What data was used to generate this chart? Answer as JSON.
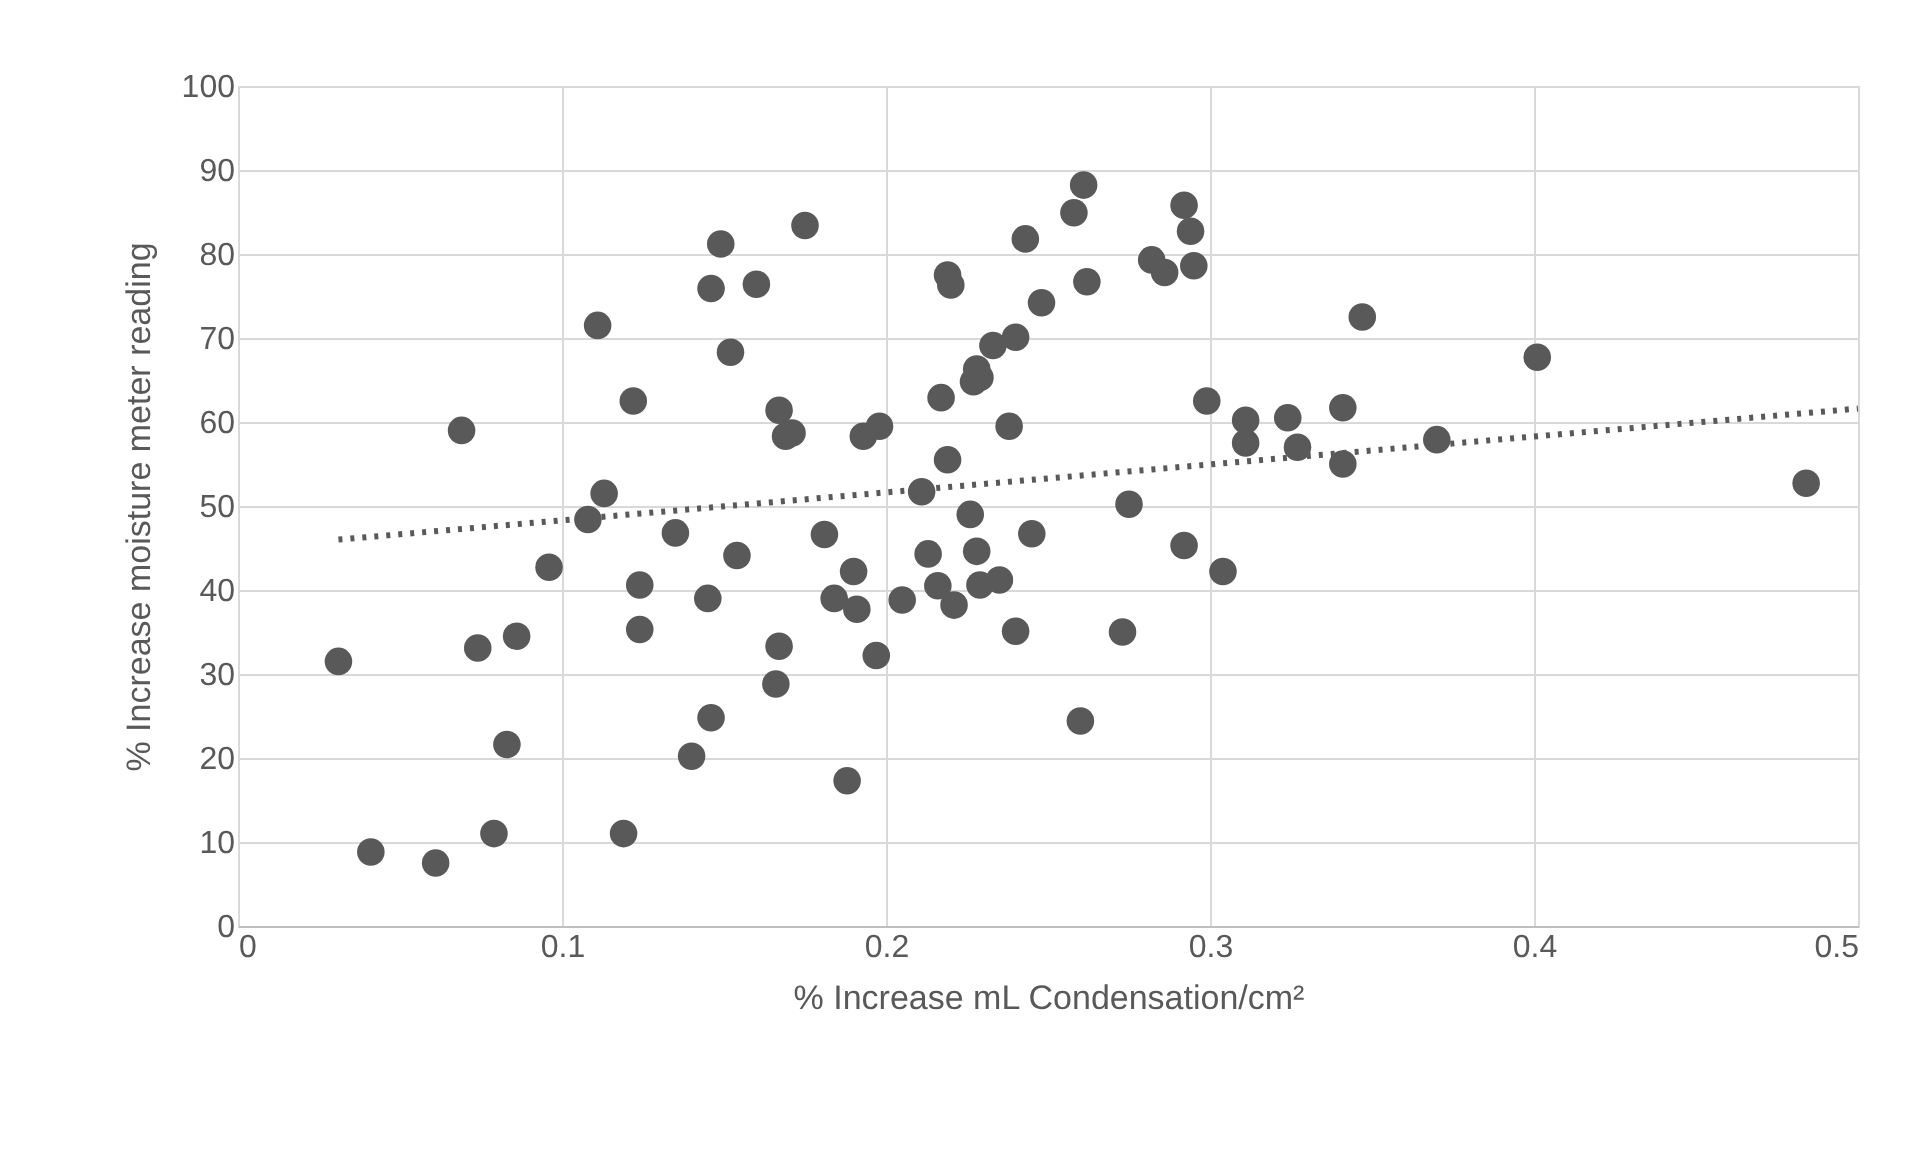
{
  "chart_data": {
    "type": "scatter",
    "xlabel": "% Increase mL Condensation/cm²",
    "ylabel": "% Increase moisture meter reading",
    "xlim": [
      0,
      0.5
    ],
    "xticks": [
      0,
      0.1,
      0.2,
      0.3,
      0.4,
      0.5
    ],
    "ylim": [
      0,
      100
    ],
    "yticks": [
      0,
      10,
      20,
      30,
      40,
      50,
      60,
      70,
      80,
      90,
      100
    ],
    "grid": true,
    "series": [
      {
        "color": "#595959",
        "marker": "circle",
        "x": [
          0.031,
          0.041,
          0.061,
          0.069,
          0.074,
          0.079,
          0.083,
          0.086,
          0.096,
          0.108,
          0.111,
          0.113,
          0.119,
          0.122,
          0.124,
          0.124,
          0.135,
          0.14,
          0.145,
          0.146,
          0.146,
          0.149,
          0.152,
          0.154,
          0.16,
          0.166,
          0.167,
          0.167,
          0.169,
          0.171,
          0.175,
          0.181,
          0.184,
          0.188,
          0.19,
          0.191,
          0.193,
          0.197,
          0.198,
          0.205,
          0.211,
          0.213,
          0.216,
          0.217,
          0.219,
          0.22,
          0.219,
          0.221,
          0.226,
          0.227,
          0.228,
          0.229,
          0.228,
          0.229,
          0.233,
          0.235,
          0.238,
          0.24,
          0.24,
          0.243,
          0.245,
          0.248,
          0.258,
          0.26,
          0.261,
          0.262,
          0.273,
          0.275,
          0.282,
          0.286,
          0.292,
          0.292,
          0.294,
          0.295,
          0.299,
          0.304,
          0.311,
          0.311,
          0.324,
          0.327,
          0.341,
          0.341,
          0.347,
          0.37,
          0.401,
          0.484
        ],
        "values": [
          31.5,
          8.8,
          7.5,
          59,
          33.1,
          11,
          21.6,
          34.5,
          42.7,
          48.4,
          71.5,
          51.5,
          11,
          62.5,
          35.3,
          40.6,
          46.8,
          20.2,
          39,
          24.8,
          75.9,
          81.2,
          68.3,
          44.1,
          76.4,
          28.8,
          33.3,
          61.4,
          58.3,
          58.7,
          83.4,
          46.6,
          39,
          17.3,
          42.2,
          37.7,
          58.3,
          32.2,
          59.5,
          38.8,
          51.7,
          44.3,
          40.5,
          62.9,
          77.5,
          76.3,
          55.5,
          38.2,
          49,
          64.8,
          66.3,
          65.3,
          44.6,
          40.6,
          69.1,
          41.2,
          59.5,
          70.1,
          35.1,
          81.8,
          46.7,
          74.2,
          84.9,
          24.4,
          88.2,
          76.7,
          35,
          50.2,
          79.3,
          77.8,
          85.8,
          45.3,
          82.7,
          78.6,
          62.5,
          42.2,
          60.2,
          57.5,
          60.5,
          57,
          61.7,
          55,
          72.5,
          57.9,
          67.7,
          52.7
        ]
      },
      {
        "type": "line",
        "color": "#595959",
        "line_style": "dotted",
        "x": [
          0.031,
          0.5
        ],
        "values": [
          46,
          61.6
        ]
      }
    ]
  }
}
